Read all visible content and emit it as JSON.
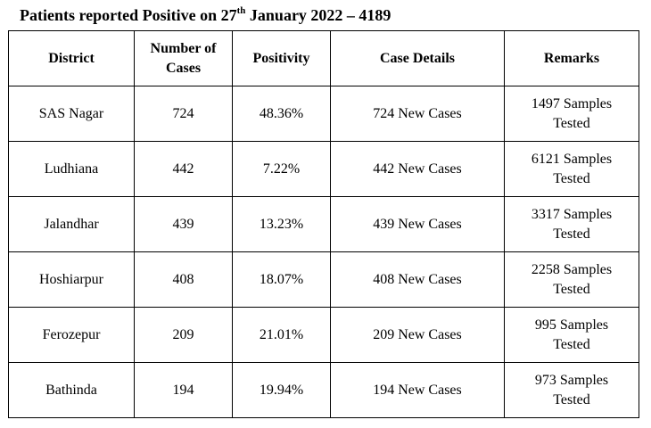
{
  "title": {
    "prefix": "Patients reported Positive on 27",
    "superscript": "th",
    "suffix": " January 2022 – 4189"
  },
  "table": {
    "headers": [
      "District",
      "Number of Cases",
      "Positivity",
      "Case Details",
      "Remarks"
    ],
    "rows": [
      [
        "SAS Nagar",
        "724",
        "48.36%",
        "724 New Cases",
        "1497 Samples Tested"
      ],
      [
        "Ludhiana",
        "442",
        "7.22%",
        "442 New Cases",
        "6121 Samples Tested"
      ],
      [
        "Jalandhar",
        "439",
        "13.23%",
        "439 New Cases",
        "3317 Samples Tested"
      ],
      [
        "Hoshiarpur",
        "408",
        "18.07%",
        "408 New Cases",
        "2258 Samples Tested"
      ],
      [
        "Ferozepur",
        "209",
        "21.01%",
        "209 New Cases",
        "995 Samples Tested"
      ],
      [
        "Bathinda",
        "194",
        "19.94%",
        "194 New Cases",
        "973 Samples Tested"
      ]
    ]
  }
}
